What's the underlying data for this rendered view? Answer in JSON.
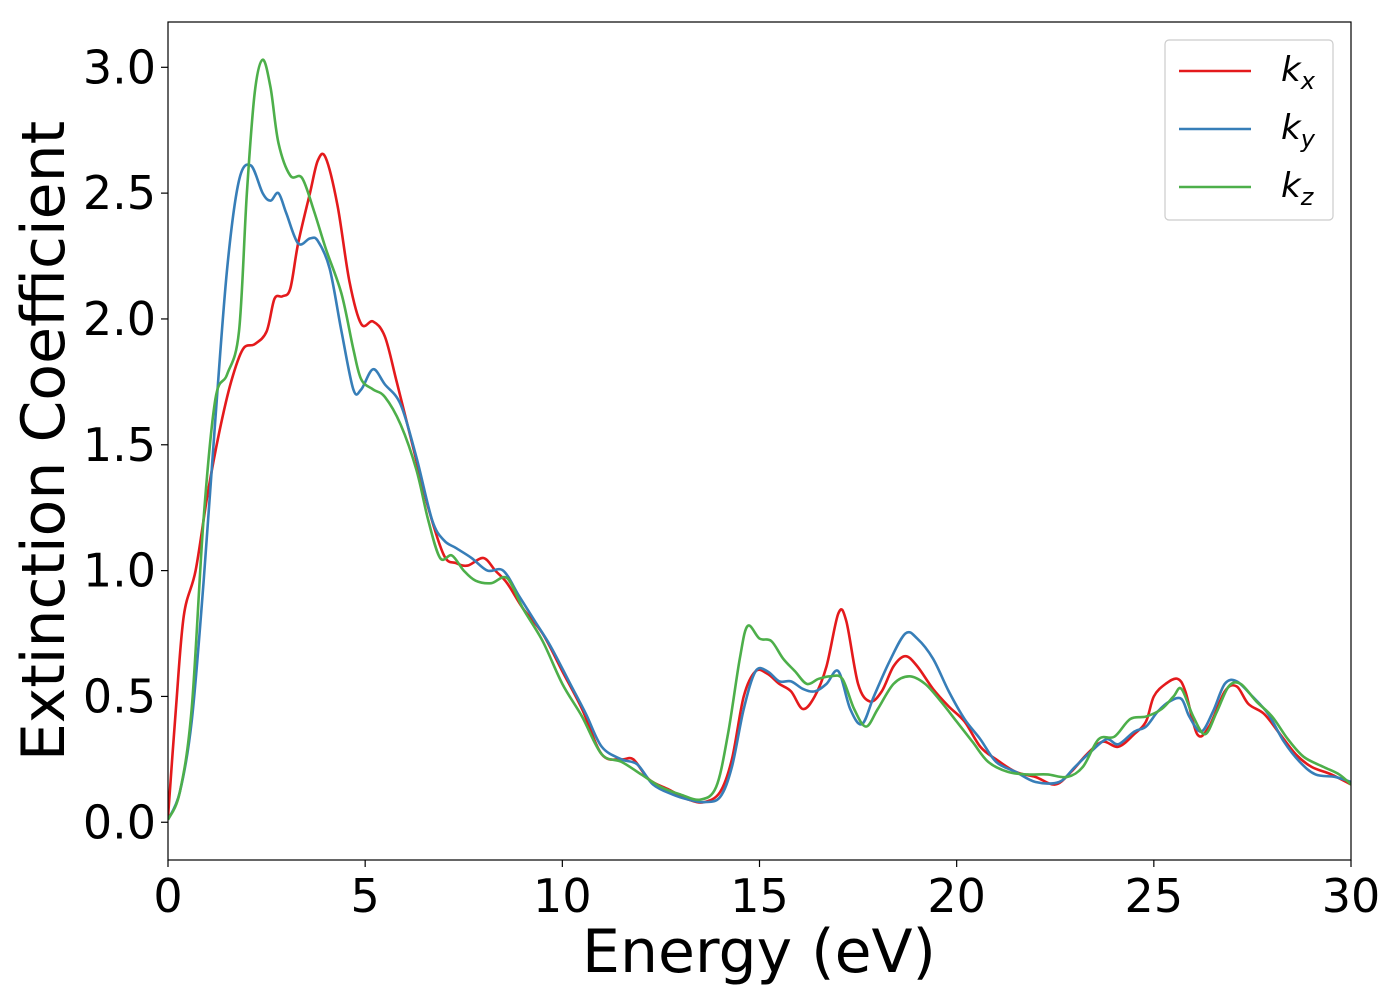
{
  "chart_data": {
    "type": "line",
    "xlabel": "Energy (eV)",
    "ylabel": "Extinction Coefficient",
    "xlim": [
      0,
      30
    ],
    "ylim": [
      -0.15,
      3.18
    ],
    "xticks": [
      0,
      5,
      10,
      15,
      20,
      25,
      30
    ],
    "xtick_labels": [
      "0",
      "5",
      "10",
      "15",
      "20",
      "25",
      "30"
    ],
    "yticks": [
      0.0,
      0.5,
      1.0,
      1.5,
      2.0,
      2.5,
      3.0
    ],
    "ytick_labels": [
      "0.0",
      "0.5",
      "1.0",
      "1.5",
      "2.0",
      "2.5",
      "3.0"
    ],
    "grid": false,
    "legend_position": "top-right",
    "series": [
      {
        "name": "k",
        "subscript": "x",
        "color": "#e41a1c",
        "points": [
          [
            0,
            0.02
          ],
          [
            0.2,
            0.45
          ],
          [
            0.4,
            0.82
          ],
          [
            0.7,
            1.0
          ],
          [
            1.0,
            1.3
          ],
          [
            1.3,
            1.55
          ],
          [
            1.6,
            1.75
          ],
          [
            1.9,
            1.88
          ],
          [
            2.2,
            1.9
          ],
          [
            2.5,
            1.95
          ],
          [
            2.7,
            2.08
          ],
          [
            2.9,
            2.09
          ],
          [
            3.1,
            2.12
          ],
          [
            3.3,
            2.3
          ],
          [
            3.6,
            2.5
          ],
          [
            3.8,
            2.63
          ],
          [
            4.0,
            2.64
          ],
          [
            4.3,
            2.45
          ],
          [
            4.6,
            2.15
          ],
          [
            4.9,
            1.98
          ],
          [
            5.2,
            1.99
          ],
          [
            5.5,
            1.93
          ],
          [
            5.8,
            1.75
          ],
          [
            6.2,
            1.5
          ],
          [
            6.6,
            1.25
          ],
          [
            7.0,
            1.06
          ],
          [
            7.3,
            1.03
          ],
          [
            7.6,
            1.02
          ],
          [
            8.0,
            1.05
          ],
          [
            8.3,
            1.0
          ],
          [
            8.6,
            0.95
          ],
          [
            9.0,
            0.85
          ],
          [
            9.5,
            0.75
          ],
          [
            10.0,
            0.6
          ],
          [
            10.5,
            0.45
          ],
          [
            11.0,
            0.27
          ],
          [
            11.5,
            0.25
          ],
          [
            11.8,
            0.25
          ],
          [
            12.2,
            0.17
          ],
          [
            12.7,
            0.13
          ],
          [
            13.2,
            0.09
          ],
          [
            13.6,
            0.08
          ],
          [
            14.0,
            0.12
          ],
          [
            14.3,
            0.25
          ],
          [
            14.6,
            0.5
          ],
          [
            14.9,
            0.6
          ],
          [
            15.2,
            0.59
          ],
          [
            15.5,
            0.55
          ],
          [
            15.8,
            0.52
          ],
          [
            16.1,
            0.45
          ],
          [
            16.4,
            0.5
          ],
          [
            16.7,
            0.62
          ],
          [
            17.0,
            0.83
          ],
          [
            17.2,
            0.8
          ],
          [
            17.5,
            0.55
          ],
          [
            17.8,
            0.48
          ],
          [
            18.1,
            0.52
          ],
          [
            18.4,
            0.62
          ],
          [
            18.7,
            0.66
          ],
          [
            19.0,
            0.62
          ],
          [
            19.4,
            0.53
          ],
          [
            19.8,
            0.46
          ],
          [
            20.2,
            0.4
          ],
          [
            20.6,
            0.3
          ],
          [
            21.0,
            0.25
          ],
          [
            21.5,
            0.2
          ],
          [
            22.0,
            0.18
          ],
          [
            22.5,
            0.15
          ],
          [
            22.9,
            0.2
          ],
          [
            23.3,
            0.27
          ],
          [
            23.7,
            0.32
          ],
          [
            24.1,
            0.3
          ],
          [
            24.5,
            0.35
          ],
          [
            24.8,
            0.4
          ],
          [
            25.0,
            0.5
          ],
          [
            25.3,
            0.55
          ],
          [
            25.6,
            0.57
          ],
          [
            25.8,
            0.52
          ],
          [
            26.1,
            0.35
          ],
          [
            26.4,
            0.38
          ],
          [
            26.8,
            0.52
          ],
          [
            27.1,
            0.54
          ],
          [
            27.4,
            0.47
          ],
          [
            27.8,
            0.43
          ],
          [
            28.2,
            0.35
          ],
          [
            28.6,
            0.27
          ],
          [
            29.0,
            0.22
          ],
          [
            29.5,
            0.19
          ],
          [
            30.0,
            0.15
          ]
        ]
      },
      {
        "name": "k",
        "subscript": "y",
        "color": "#377eb8",
        "points": [
          [
            0,
            0.01
          ],
          [
            0.3,
            0.12
          ],
          [
            0.6,
            0.4
          ],
          [
            0.9,
            0.95
          ],
          [
            1.2,
            1.6
          ],
          [
            1.5,
            2.2
          ],
          [
            1.8,
            2.55
          ],
          [
            2.1,
            2.61
          ],
          [
            2.4,
            2.5
          ],
          [
            2.6,
            2.47
          ],
          [
            2.8,
            2.5
          ],
          [
            3.0,
            2.42
          ],
          [
            3.3,
            2.3
          ],
          [
            3.6,
            2.32
          ],
          [
            3.8,
            2.31
          ],
          [
            4.1,
            2.2
          ],
          [
            4.4,
            1.95
          ],
          [
            4.7,
            1.72
          ],
          [
            4.9,
            1.72
          ],
          [
            5.2,
            1.8
          ],
          [
            5.5,
            1.74
          ],
          [
            5.9,
            1.66
          ],
          [
            6.3,
            1.45
          ],
          [
            6.7,
            1.2
          ],
          [
            7.0,
            1.12
          ],
          [
            7.3,
            1.09
          ],
          [
            7.7,
            1.05
          ],
          [
            8.1,
            1.0
          ],
          [
            8.5,
            1.0
          ],
          [
            8.9,
            0.9
          ],
          [
            9.3,
            0.8
          ],
          [
            9.7,
            0.7
          ],
          [
            10.2,
            0.55
          ],
          [
            10.6,
            0.43
          ],
          [
            11.0,
            0.3
          ],
          [
            11.5,
            0.25
          ],
          [
            11.9,
            0.23
          ],
          [
            12.3,
            0.15
          ],
          [
            12.8,
            0.11
          ],
          [
            13.2,
            0.09
          ],
          [
            13.6,
            0.08
          ],
          [
            14.0,
            0.1
          ],
          [
            14.3,
            0.22
          ],
          [
            14.6,
            0.45
          ],
          [
            14.9,
            0.6
          ],
          [
            15.2,
            0.6
          ],
          [
            15.5,
            0.56
          ],
          [
            15.8,
            0.56
          ],
          [
            16.1,
            0.53
          ],
          [
            16.4,
            0.52
          ],
          [
            16.7,
            0.55
          ],
          [
            17.0,
            0.6
          ],
          [
            17.3,
            0.45
          ],
          [
            17.6,
            0.39
          ],
          [
            17.9,
            0.5
          ],
          [
            18.3,
            0.64
          ],
          [
            18.7,
            0.75
          ],
          [
            19.0,
            0.73
          ],
          [
            19.4,
            0.65
          ],
          [
            19.8,
            0.52
          ],
          [
            20.2,
            0.41
          ],
          [
            20.6,
            0.33
          ],
          [
            21.0,
            0.24
          ],
          [
            21.5,
            0.2
          ],
          [
            22.0,
            0.16
          ],
          [
            22.6,
            0.16
          ],
          [
            23.0,
            0.22
          ],
          [
            23.4,
            0.28
          ],
          [
            23.8,
            0.33
          ],
          [
            24.1,
            0.31
          ],
          [
            24.5,
            0.36
          ],
          [
            24.8,
            0.38
          ],
          [
            25.1,
            0.44
          ],
          [
            25.4,
            0.48
          ],
          [
            25.7,
            0.49
          ],
          [
            25.9,
            0.42
          ],
          [
            26.2,
            0.36
          ],
          [
            26.5,
            0.44
          ],
          [
            26.8,
            0.55
          ],
          [
            27.1,
            0.56
          ],
          [
            27.5,
            0.5
          ],
          [
            27.9,
            0.43
          ],
          [
            28.3,
            0.32
          ],
          [
            28.7,
            0.24
          ],
          [
            29.1,
            0.19
          ],
          [
            29.6,
            0.18
          ],
          [
            30.0,
            0.16
          ]
        ]
      },
      {
        "name": "k",
        "subscript": "z",
        "color": "#4daf4a",
        "points": [
          [
            0,
            0.01
          ],
          [
            0.3,
            0.12
          ],
          [
            0.6,
            0.45
          ],
          [
            0.9,
            1.2
          ],
          [
            1.2,
            1.68
          ],
          [
            1.5,
            1.78
          ],
          [
            1.8,
            1.95
          ],
          [
            2.0,
            2.5
          ],
          [
            2.2,
            2.9
          ],
          [
            2.4,
            3.03
          ],
          [
            2.6,
            2.92
          ],
          [
            2.8,
            2.7
          ],
          [
            3.1,
            2.57
          ],
          [
            3.4,
            2.56
          ],
          [
            3.7,
            2.43
          ],
          [
            4.0,
            2.28
          ],
          [
            4.4,
            2.1
          ],
          [
            4.7,
            1.88
          ],
          [
            4.9,
            1.76
          ],
          [
            5.2,
            1.72
          ],
          [
            5.5,
            1.69
          ],
          [
            5.9,
            1.58
          ],
          [
            6.3,
            1.4
          ],
          [
            6.6,
            1.2
          ],
          [
            6.9,
            1.05
          ],
          [
            7.2,
            1.06
          ],
          [
            7.5,
            1.0
          ],
          [
            7.8,
            0.96
          ],
          [
            8.2,
            0.95
          ],
          [
            8.6,
            0.97
          ],
          [
            9.0,
            0.85
          ],
          [
            9.5,
            0.72
          ],
          [
            10.0,
            0.55
          ],
          [
            10.5,
            0.42
          ],
          [
            11.0,
            0.27
          ],
          [
            11.5,
            0.24
          ],
          [
            12.0,
            0.19
          ],
          [
            12.5,
            0.14
          ],
          [
            13.0,
            0.11
          ],
          [
            13.5,
            0.09
          ],
          [
            13.9,
            0.14
          ],
          [
            14.2,
            0.35
          ],
          [
            14.5,
            0.65
          ],
          [
            14.7,
            0.78
          ],
          [
            15.0,
            0.73
          ],
          [
            15.3,
            0.72
          ],
          [
            15.6,
            0.65
          ],
          [
            15.9,
            0.6
          ],
          [
            16.2,
            0.55
          ],
          [
            16.5,
            0.57
          ],
          [
            16.8,
            0.58
          ],
          [
            17.1,
            0.57
          ],
          [
            17.4,
            0.45
          ],
          [
            17.7,
            0.38
          ],
          [
            18.0,
            0.45
          ],
          [
            18.4,
            0.55
          ],
          [
            18.8,
            0.58
          ],
          [
            19.2,
            0.55
          ],
          [
            19.6,
            0.48
          ],
          [
            20.0,
            0.4
          ],
          [
            20.4,
            0.32
          ],
          [
            20.8,
            0.24
          ],
          [
            21.3,
            0.2
          ],
          [
            21.8,
            0.19
          ],
          [
            22.3,
            0.19
          ],
          [
            22.8,
            0.18
          ],
          [
            23.2,
            0.22
          ],
          [
            23.6,
            0.33
          ],
          [
            24.0,
            0.34
          ],
          [
            24.4,
            0.41
          ],
          [
            24.8,
            0.42
          ],
          [
            25.2,
            0.45
          ],
          [
            25.5,
            0.5
          ],
          [
            25.7,
            0.53
          ],
          [
            26.0,
            0.42
          ],
          [
            26.3,
            0.35
          ],
          [
            26.6,
            0.44
          ],
          [
            26.9,
            0.54
          ],
          [
            27.2,
            0.55
          ],
          [
            27.6,
            0.48
          ],
          [
            28.0,
            0.42
          ],
          [
            28.4,
            0.33
          ],
          [
            28.8,
            0.26
          ],
          [
            29.3,
            0.22
          ],
          [
            29.7,
            0.19
          ],
          [
            30.0,
            0.15
          ]
        ]
      }
    ]
  }
}
